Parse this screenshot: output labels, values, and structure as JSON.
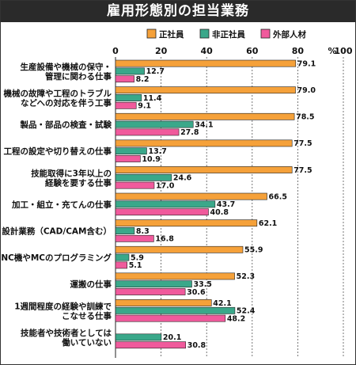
{
  "header": {
    "title": "雇用形態別の担当業務"
  },
  "colors": {
    "regular": "#f5a13a",
    "non_regular": "#3aa88a",
    "external": "#f05a9c"
  },
  "chart_data": {
    "type": "bar",
    "orientation": "horizontal",
    "title": "雇用形態別の担当業務",
    "unit": "%",
    "xlim": [
      0,
      100
    ],
    "ticks": [
      "0",
      "20",
      "40",
      "60",
      "80",
      "100"
    ],
    "legend_position": "top-right",
    "categories": [
      [
        "生産設備や機械の保守・",
        "管理に関わる仕事"
      ],
      [
        "機械の故障や工程のトラブル",
        "などへの対応を伴う工事"
      ],
      [
        "製品・部品の検査・試験"
      ],
      [
        "工程の設定や切り替えの仕事"
      ],
      [
        "技能取得に3年以上の",
        "経験を要する仕事"
      ],
      [
        "加工・組立・充てんの仕事"
      ],
      [
        "設計業務（CAD/CAM含む）"
      ],
      [
        "NC機やMCのプログラミング"
      ],
      [
        "運搬の仕事"
      ],
      [
        "1週間程度の経験や訓練で",
        "こなせる仕事"
      ],
      [
        "技能者や技術者としては",
        "働いていない"
      ]
    ],
    "series": [
      {
        "name": "正社員",
        "values": [
          79.1,
          79.0,
          78.5,
          77.5,
          77.5,
          66.5,
          62.1,
          55.9,
          52.3,
          42.1,
          null
        ],
        "labels": [
          "79.1",
          "79.0",
          "78.5",
          "77.5",
          "77.5",
          "66.5",
          "62.1",
          "55.9",
          "52.3",
          "42.1",
          ""
        ]
      },
      {
        "name": "非正社員",
        "values": [
          12.7,
          11.4,
          34.1,
          13.7,
          24.6,
          43.7,
          8.3,
          5.9,
          33.5,
          52.4,
          20.1
        ],
        "labels": [
          "12.7",
          "11.4",
          "34.1",
          "13.7",
          "24.6",
          "43.7",
          "8.3",
          "5.9",
          "33.5",
          "52.4",
          "20.1"
        ]
      },
      {
        "name": "外部人材",
        "values": [
          8.2,
          9.1,
          27.8,
          10.9,
          17.0,
          40.8,
          16.8,
          5.1,
          30.6,
          48.2,
          30.8
        ],
        "labels": [
          "8.2",
          "9.1",
          "27.8",
          "10.9",
          "17.0",
          "40.8",
          "16.8",
          "5.1",
          "30.6",
          "48.2",
          "30.8"
        ]
      }
    ]
  }
}
